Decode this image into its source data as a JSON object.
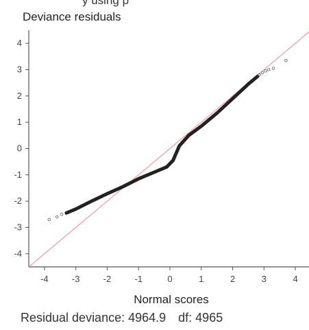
{
  "header_fragment": "y using p",
  "chart_data": {
    "type": "scatter",
    "title": "",
    "ylabel": "Deviance residuals",
    "xlabel": "Normal scores",
    "xlim": [
      -4.5,
      4.5
    ],
    "ylim": [
      -4.5,
      4.5
    ],
    "xticks": [
      -4,
      -3,
      -2,
      -1,
      0,
      1,
      2,
      3,
      4
    ],
    "yticks": [
      -4,
      -3,
      -2,
      -1,
      0,
      1,
      2,
      3,
      4
    ],
    "xtick_labels": [
      "-4",
      "-3",
      "-2",
      "-1",
      "0",
      "1",
      "2",
      "3",
      "4"
    ],
    "ytick_labels": [
      "-4",
      "-3",
      "-2",
      "-1",
      "0",
      "1",
      "2",
      "3",
      "4"
    ],
    "grid": false,
    "reference_line": {
      "slope": 1,
      "intercept": 0,
      "color": "#f0a0a8"
    },
    "point_color": "#222222",
    "curve_anchors": [
      [
        -3.3,
        -2.45
      ],
      [
        -3.0,
        -2.3
      ],
      [
        -2.5,
        -2.0
      ],
      [
        -2.0,
        -1.72
      ],
      [
        -1.5,
        -1.45
      ],
      [
        -1.0,
        -1.15
      ],
      [
        -0.5,
        -0.9
      ],
      [
        -0.1,
        -0.7
      ],
      [
        0.1,
        -0.45
      ],
      [
        0.3,
        0.1
      ],
      [
        0.6,
        0.5
      ],
      [
        1.0,
        0.85
      ],
      [
        1.5,
        1.35
      ],
      [
        2.0,
        1.9
      ],
      [
        2.5,
        2.45
      ],
      [
        2.8,
        2.75
      ]
    ],
    "tail_points": [
      [
        -3.85,
        -2.7
      ],
      [
        -3.6,
        -2.6
      ],
      [
        -3.45,
        -2.5
      ],
      [
        2.85,
        2.8
      ],
      [
        2.95,
        2.88
      ],
      [
        3.05,
        2.95
      ],
      [
        3.15,
        3.0
      ],
      [
        3.3,
        3.05
      ],
      [
        3.7,
        3.35
      ]
    ]
  },
  "footer": {
    "residual_deviance": "Residual deviance: 4964.9",
    "df": "df: 4965"
  }
}
